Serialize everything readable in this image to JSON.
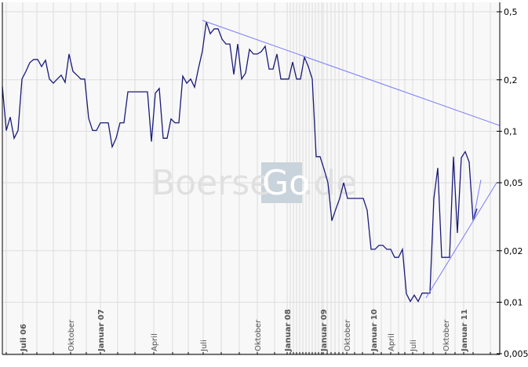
{
  "chart_data": {
    "type": "line",
    "title": "",
    "xlabel": "",
    "ylabel": "",
    "y_scale": "log",
    "ylim": [
      0.005,
      0.55
    ],
    "grid": true,
    "legend": "none",
    "y_ticks": [
      "0,5",
      "0,2",
      "0,1",
      "0,05",
      "0,02",
      "0,01",
      "0,005"
    ],
    "y_tick_values": [
      0.5,
      0.2,
      0.1,
      0.05,
      0.02,
      0.01,
      0.005
    ],
    "x_ticks": [
      {
        "label": "Juli 06",
        "bold": true
      },
      {
        "label": "Oktober",
        "bold": false
      },
      {
        "label": "Januar 07",
        "bold": true
      },
      {
        "label": "April",
        "bold": false
      },
      {
        "label": "Juli",
        "bold": false
      },
      {
        "label": "Oktober",
        "bold": false
      },
      {
        "label": "Januar 08",
        "bold": true
      },
      {
        "label": "Januar 09",
        "bold": true
      },
      {
        "label": "Oktober",
        "bold": false
      },
      {
        "label": "Januar 10",
        "bold": true
      },
      {
        "label": "April",
        "bold": false
      },
      {
        "label": "Juli",
        "bold": false
      },
      {
        "label": "Oktober",
        "bold": false
      },
      {
        "label": "Januar 11",
        "bold": true
      }
    ],
    "series": [
      {
        "color": "#1a1a7a",
        "values": [
          0.183,
          0.101,
          0.121,
          0.091,
          0.101,
          0.202,
          0.224,
          0.252,
          0.263,
          0.263,
          0.239,
          0.26,
          0.202,
          0.191,
          0.202,
          0.213,
          0.193,
          0.283,
          0.224,
          0.213,
          0.202,
          0.202,
          0.119,
          0.101,
          0.101,
          0.112,
          0.112,
          0.112,
          0.081,
          0.091,
          0.112,
          0.112,
          0.17,
          0.17,
          0.17,
          0.17,
          0.17,
          0.17,
          0.087,
          0.167,
          0.178,
          0.091,
          0.091,
          0.118,
          0.112,
          0.112,
          0.21,
          0.191,
          0.202,
          0.181,
          0.234,
          0.295,
          0.436,
          0.372,
          0.397,
          0.397,
          0.346,
          0.324,
          0.324,
          0.215,
          0.324,
          0.202,
          0.219,
          0.301,
          0.283,
          0.283,
          0.292,
          0.314,
          0.231,
          0.231,
          0.283,
          0.202,
          0.202,
          0.202,
          0.254,
          0.202,
          0.202,
          0.271,
          0.239,
          0.202,
          0.071,
          0.071,
          0.06,
          0.05,
          0.03,
          0.035,
          0.0405,
          0.05,
          0.0405,
          0.0405,
          0.0405,
          0.0405,
          0.0405,
          0.0345,
          0.0204,
          0.0204,
          0.0215,
          0.0215,
          0.0204,
          0.0204,
          0.0183,
          0.0183,
          0.0204,
          0.0112,
          0.0101,
          0.011,
          0.0101,
          0.0113,
          0.0113,
          0.0113,
          0.0405,
          0.061,
          0.0183,
          0.0183,
          0.0183,
          0.071,
          0.0254,
          0.07,
          0.076,
          0.066,
          0.03,
          0.0353
        ]
      }
    ],
    "trendlines": [
      {
        "name": "resistance",
        "color": "#7a7aff",
        "from": {
          "obs": 51,
          "value": 0.445
        },
        "to": {
          "obs": 126.8,
          "value": 0.108
        }
      },
      {
        "name": "support",
        "color": "#7a7aff",
        "from": {
          "obs": 108,
          "value": 0.0106
        },
        "to": {
          "obs": 126,
          "value": 0.05
        }
      },
      {
        "name": "extension",
        "color": "#7a7aff",
        "from": {
          "obs": 120,
          "value": 0.03
        },
        "to": {
          "obs": 122,
          "value": 0.052
        }
      }
    ]
  },
  "watermark": {
    "part1": "Boerse",
    "part2": "Go",
    "part3": ".de"
  },
  "colors": {
    "plot_bg": "#f8f8f8",
    "grid": "#dddddd",
    "line": "#1a1a7a",
    "trend": "#7a7aff",
    "watermark_box": "#c9d3dc"
  }
}
